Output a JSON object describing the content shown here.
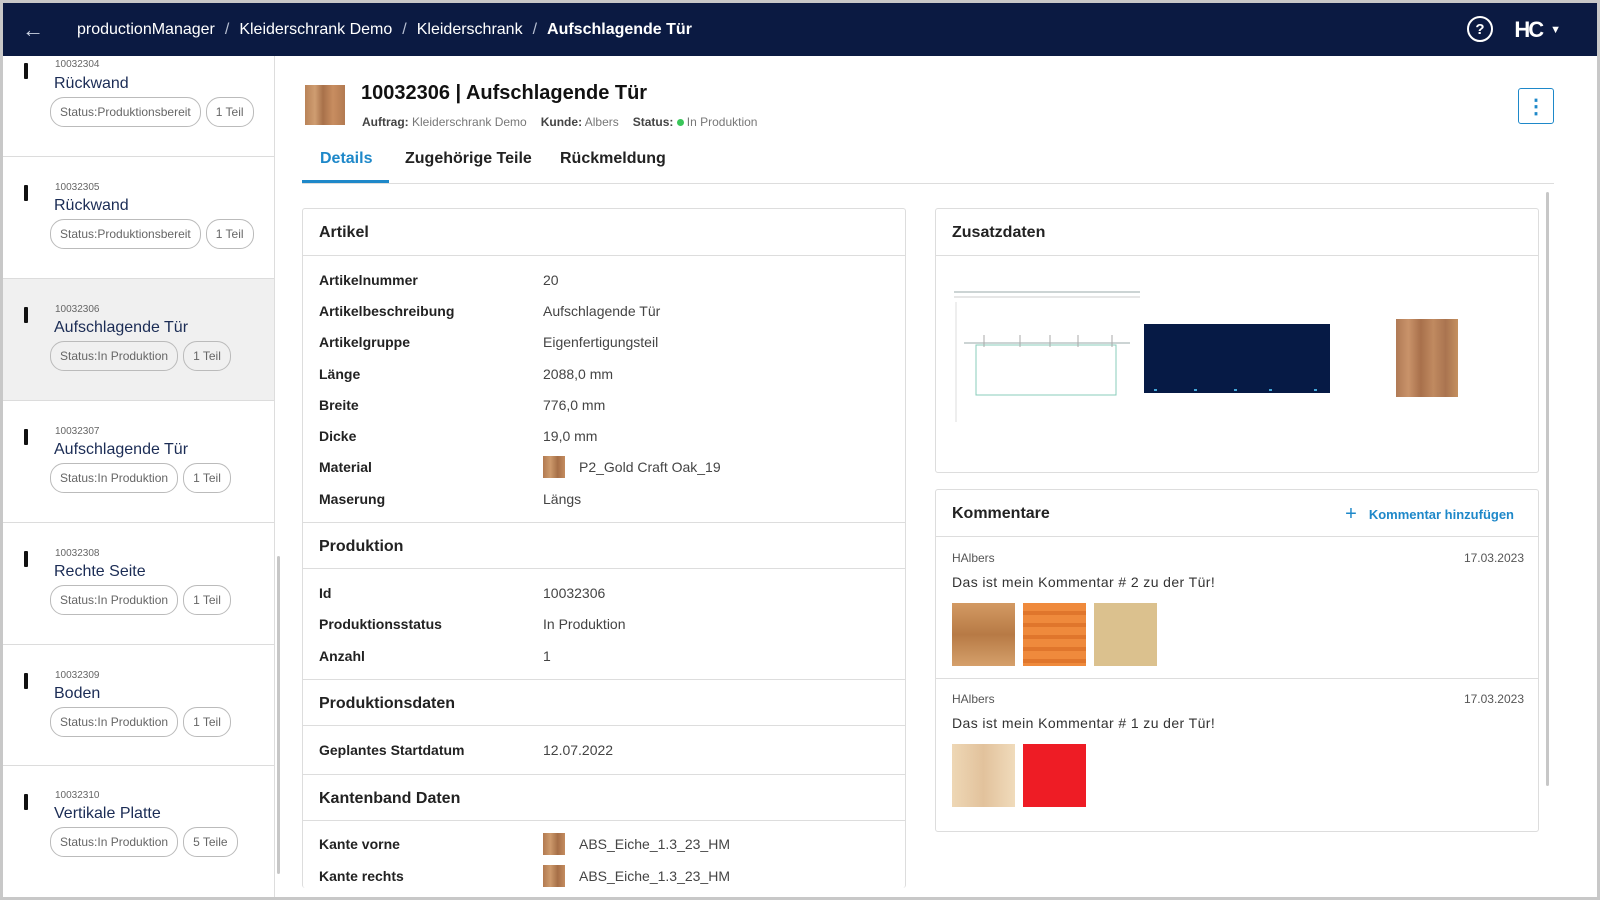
{
  "topbar": {
    "breadcrumb": [
      "productionManager",
      "Kleiderschrank Demo",
      "Kleiderschrank",
      "Aufschlagende Tür"
    ],
    "separator": "/",
    "help_glyph": "?",
    "logo_text": "HC",
    "colors": {
      "background": "#0b1a42"
    }
  },
  "sidebar": {
    "items": [
      {
        "number": "10032304",
        "name": "Rückwand",
        "status": "Status:Produktionsbereit",
        "count": "1 Teil"
      },
      {
        "number": "10032305",
        "name": "Rückwand",
        "status": "Status:Produktionsbereit",
        "count": "1 Teil"
      },
      {
        "number": "10032306",
        "name": "Aufschlagende Tür",
        "status": "Status:In Produktion",
        "count": "1 Teil"
      },
      {
        "number": "10032307",
        "name": "Aufschlagende Tür",
        "status": "Status:In Produktion",
        "count": "1 Teil"
      },
      {
        "number": "10032308",
        "name": "Rechte Seite",
        "status": "Status:In Produktion",
        "count": "1 Teil"
      },
      {
        "number": "10032309",
        "name": "Boden",
        "status": "Status:In Produktion",
        "count": "1 Teil"
      },
      {
        "number": "10032310",
        "name": "Vertikale Platte",
        "status": "Status:In Produktion",
        "count": "5 Teile"
      }
    ]
  },
  "header": {
    "title": "10032306 | Aufschlagende Tür",
    "auftrag_label": "Auftrag:",
    "auftrag": "Kleiderschrank Demo",
    "kunde_label": "Kunde:",
    "kunde": "Albers",
    "status_label": "Status:",
    "status": "In Produktion",
    "status_color": "#3ac65a",
    "menu_glyph": "⋮"
  },
  "tabs": [
    "Details",
    "Zugehörige Teile",
    "Rückmeldung"
  ],
  "details": {
    "heading": "Artikel",
    "artikel": [
      {
        "label": "Artikelnummer",
        "value": "20"
      },
      {
        "label": "Artikelbeschreibung",
        "value": "Aufschlagende Tür"
      },
      {
        "label": "Artikelgruppe",
        "value": "Eigenfertigungsteil"
      },
      {
        "label": "Länge",
        "value": "2088,0 mm"
      },
      {
        "label": "Breite",
        "value": "776,0 mm"
      },
      {
        "label": "Dicke",
        "value": "19,0 mm"
      },
      {
        "label": "Material",
        "value": "P2_Gold Craft Oak_19"
      },
      {
        "label": "Maserung",
        "value": "Längs"
      }
    ],
    "produktion_heading": "Produktion",
    "produktion": [
      {
        "label": "Id",
        "value": "10032306"
      },
      {
        "label": "Produktionsstatus",
        "value": "In Produktion"
      },
      {
        "label": "Anzahl",
        "value": "1"
      }
    ],
    "produktionsdaten_heading": "Produktionsdaten",
    "produktionsdaten": [
      {
        "label": "Geplantes Startdatum",
        "value": "12.07.2022"
      }
    ],
    "kantenband_heading": "Kantenband Daten",
    "kantenband": [
      {
        "label": "Kante vorne",
        "value": "ABS_Eiche_1.3_23_HM"
      },
      {
        "label": "Kante rechts",
        "value": "ABS_Eiche_1.3_23_HM"
      }
    ]
  },
  "zusatzdaten": {
    "heading": "Zusatzdaten"
  },
  "kommentare": {
    "heading": "Kommentare",
    "add_label": "Kommentar hinzufügen",
    "add_glyph": "+",
    "items": [
      {
        "user": "HAlbers",
        "date": "17.03.2023",
        "text": "Das ist mein Kommentar # 2 zu der Tür!",
        "images": [
          "#c98f5c",
          "#e8853c",
          "#d8bf8c"
        ]
      },
      {
        "user": "HAlbers",
        "date": "17.03.2023",
        "text": "Das ist mein Kommentar # 1 zu der Tür!",
        "images": [
          "#ead2b0",
          "#ee1c25"
        ]
      }
    ]
  },
  "colors": {
    "accent": "#1e88c9",
    "navy": "#0b1a42"
  }
}
